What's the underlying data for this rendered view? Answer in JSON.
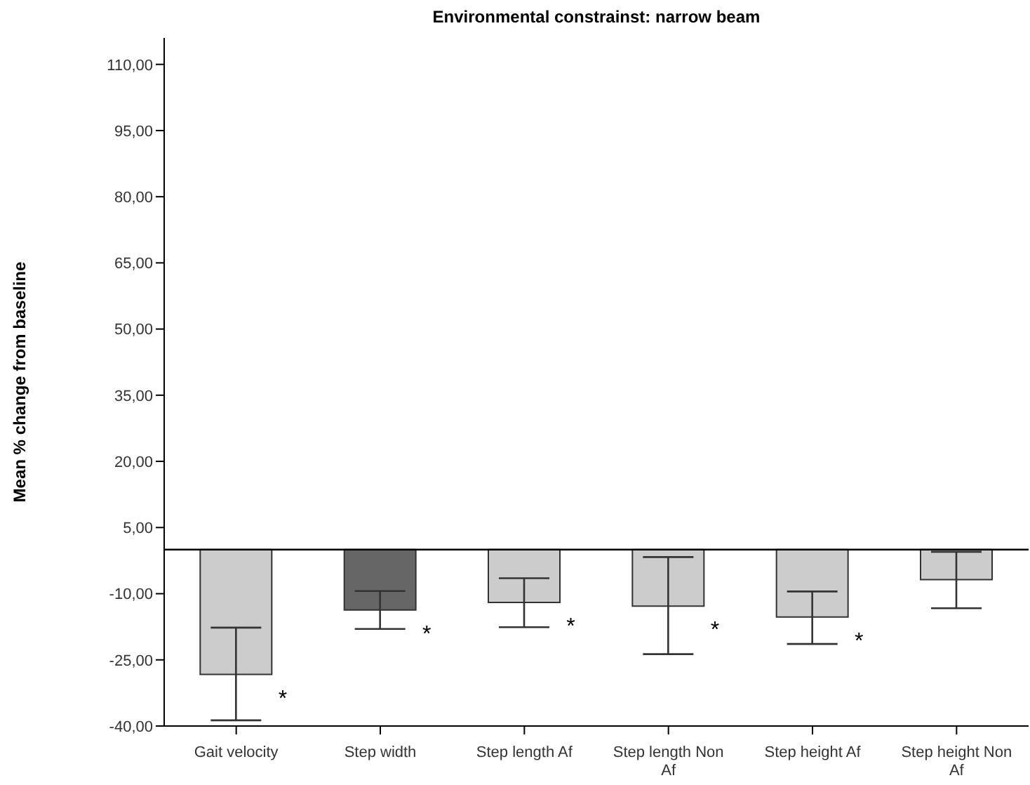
{
  "chart_data": {
    "type": "bar",
    "title": "Environmental constrainst: narrow beam",
    "ylabel": "Mean % change from baseline",
    "categories": [
      "Gait velocity",
      "Step width",
      "Step length Af",
      "Step length Non Af",
      "Step height Af",
      "Step height Non Af"
    ],
    "values": [
      -28.3,
      -13.7,
      -12.0,
      -12.8,
      -15.3,
      -6.8
    ],
    "colors": [
      "#cccccc",
      "#666666",
      "#cccccc",
      "#cccccc",
      "#cccccc",
      "#cccccc"
    ],
    "errors": [
      [
        -38.7,
        -17.7
      ],
      [
        -18.0,
        -9.4
      ],
      [
        -17.6,
        -6.5
      ],
      [
        -23.7,
        -1.7
      ],
      [
        -21.4,
        -9.5
      ],
      [
        -13.3,
        -0.5
      ]
    ],
    "ylim": [
      -40,
      116
    ],
    "yticks": [
      {
        "value": -40,
        "label": "-40,00"
      },
      {
        "value": -25,
        "label": "-25,00"
      },
      {
        "value": -10,
        "label": "-10,00"
      },
      {
        "value": 5,
        "label": "5,00"
      },
      {
        "value": 20,
        "label": "20,00"
      },
      {
        "value": 35,
        "label": "35,00"
      },
      {
        "value": 50,
        "label": "50,00"
      },
      {
        "value": 65,
        "label": "65,00"
      },
      {
        "value": 80,
        "label": "80,00"
      },
      {
        "value": 95,
        "label": "95,00"
      },
      {
        "value": 110,
        "label": "110,00"
      }
    ],
    "ref_lines": [
      {
        "axis": "y",
        "value": 0,
        "color": "#000000"
      }
    ],
    "annotations": [
      {
        "text": "*",
        "x": "Gait velocity",
        "y": -28.3
      },
      {
        "text": "*",
        "x": "Step width",
        "y": -13.7
      },
      {
        "text": "*",
        "x": "Step length Af",
        "y": -12.0
      },
      {
        "text": "*",
        "x": "Step length Non Af",
        "y": -12.8
      },
      {
        "text": "*",
        "x": "Step height Af",
        "y": -15.3
      }
    ],
    "grid": false,
    "legend": false
  }
}
